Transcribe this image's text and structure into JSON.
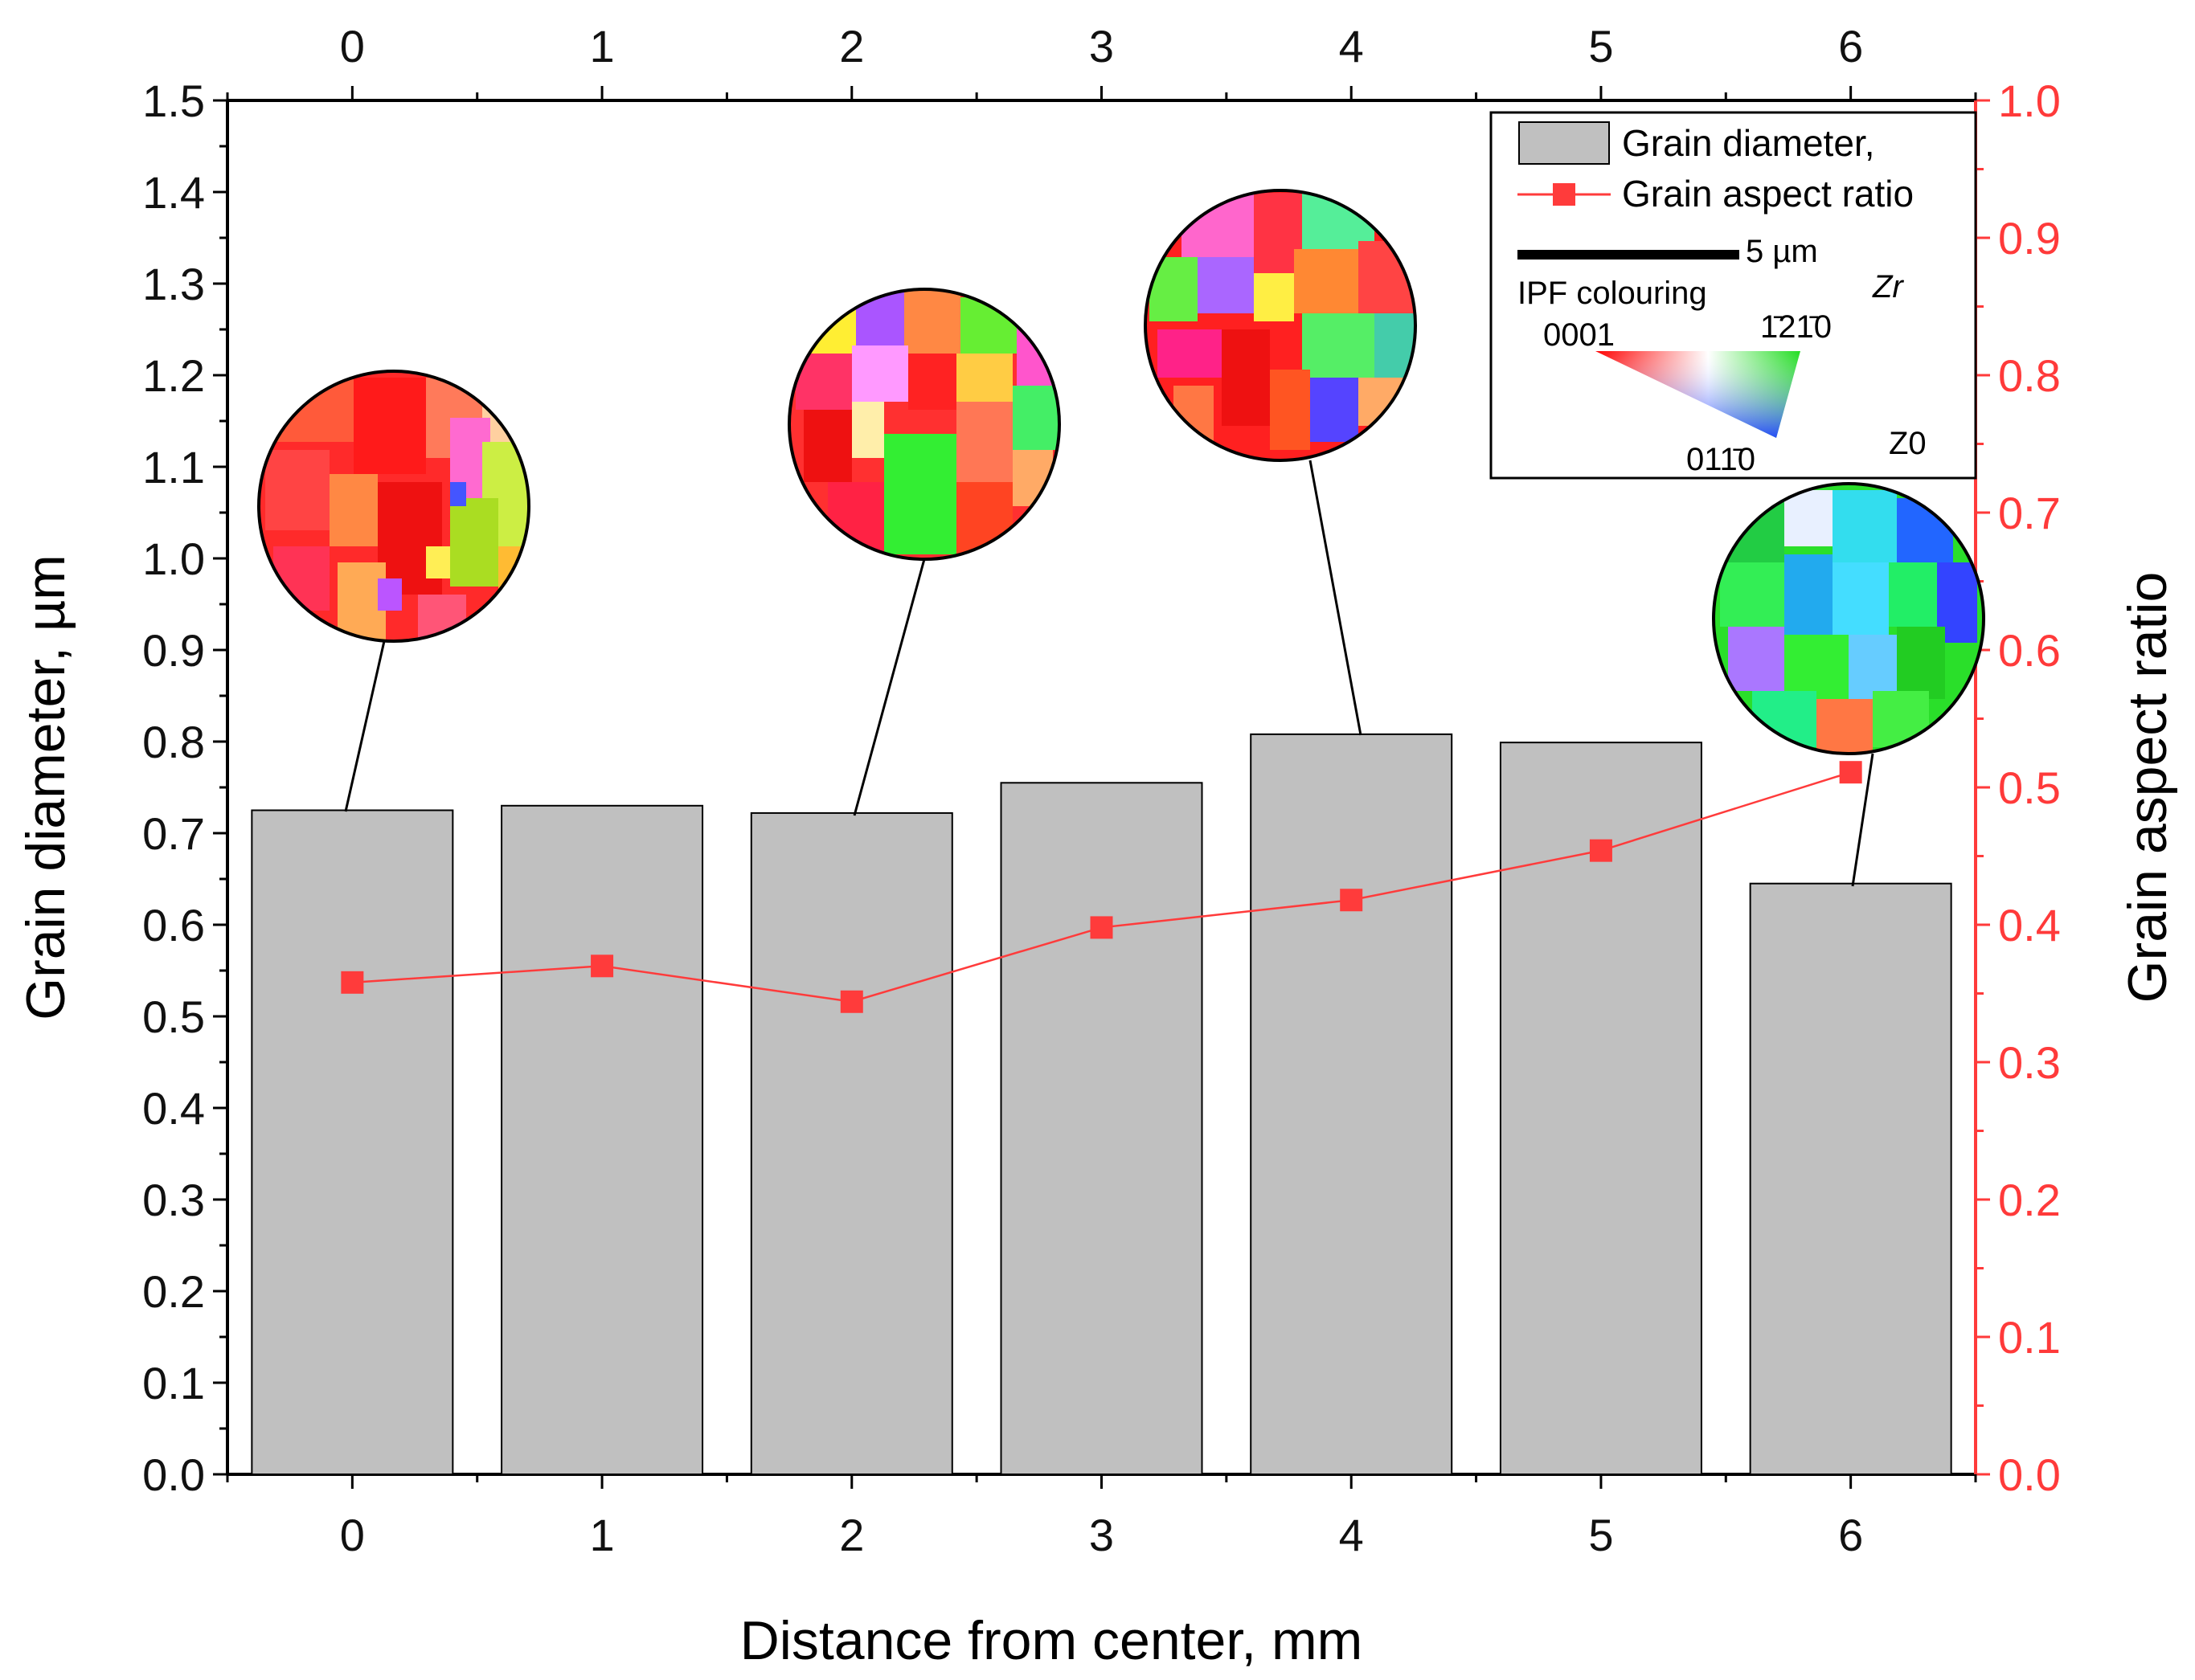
{
  "chart_data": {
    "type": "bar",
    "categories": [
      "0",
      "1",
      "2",
      "3",
      "4",
      "5",
      "6"
    ],
    "series": [
      {
        "name": "Grain diameter,",
        "axis": "left",
        "kind": "bar",
        "color": "#c0c0c0",
        "values": [
          0.725,
          0.73,
          0.722,
          0.755,
          0.808,
          0.799,
          0.645
        ]
      },
      {
        "name": "Grain aspect ratio",
        "axis": "right",
        "kind": "line",
        "color": "#ff3b3b",
        "values": [
          0.358,
          0.37,
          0.344,
          0.398,
          0.418,
          0.454,
          0.511
        ]
      }
    ],
    "xlabel": "Distance from center, mm",
    "ylabel": "Grain diameter, µm",
    "ylabel_right": "Grain aspect ratio",
    "ylim": [
      0.0,
      1.5
    ],
    "ylim_right": [
      0.0,
      1.0
    ],
    "xlim": [
      -0.5,
      6.5
    ],
    "yticks": [
      "0.0",
      "0.1",
      "0.2",
      "0.3",
      "0.4",
      "0.5",
      "0.6",
      "0.7",
      "0.8",
      "0.9",
      "1.0",
      "1.1",
      "1.2",
      "1.3",
      "1.4",
      "1.5"
    ],
    "yticks_right": [
      "0.0",
      "0.1",
      "0.2",
      "0.3",
      "0.4",
      "0.5",
      "0.6",
      "0.7",
      "0.8",
      "0.9",
      "1.0"
    ],
    "xticks": [
      "0",
      "1",
      "2",
      "3",
      "4",
      "5",
      "6"
    ],
    "xticks_top": [
      "0",
      "1",
      "2",
      "3",
      "4",
      "5",
      "6"
    ],
    "grid": false,
    "legend_position": "top-right",
    "insets": [
      {
        "name": "ebsd-map-0mm",
        "category": "0",
        "dominant_color": "#ff2a2a"
      },
      {
        "name": "ebsd-map-2mm",
        "category": "2",
        "dominant_color": "#ff3030"
      },
      {
        "name": "ebsd-map-4mm",
        "category": "4",
        "dominant_color": "#ff2020"
      },
      {
        "name": "ebsd-map-6mm",
        "category": "6",
        "dominant_color": "#2adf2a"
      }
    ],
    "legend_extra": {
      "scale_bar": "5 µm",
      "ipf_label": "IPF colouring",
      "phase": "Zr",
      "direction": "Z0",
      "pole_0001": "0001",
      "pole_1210": "1̄21̄0",
      "pole_0110": "011̄0"
    }
  }
}
